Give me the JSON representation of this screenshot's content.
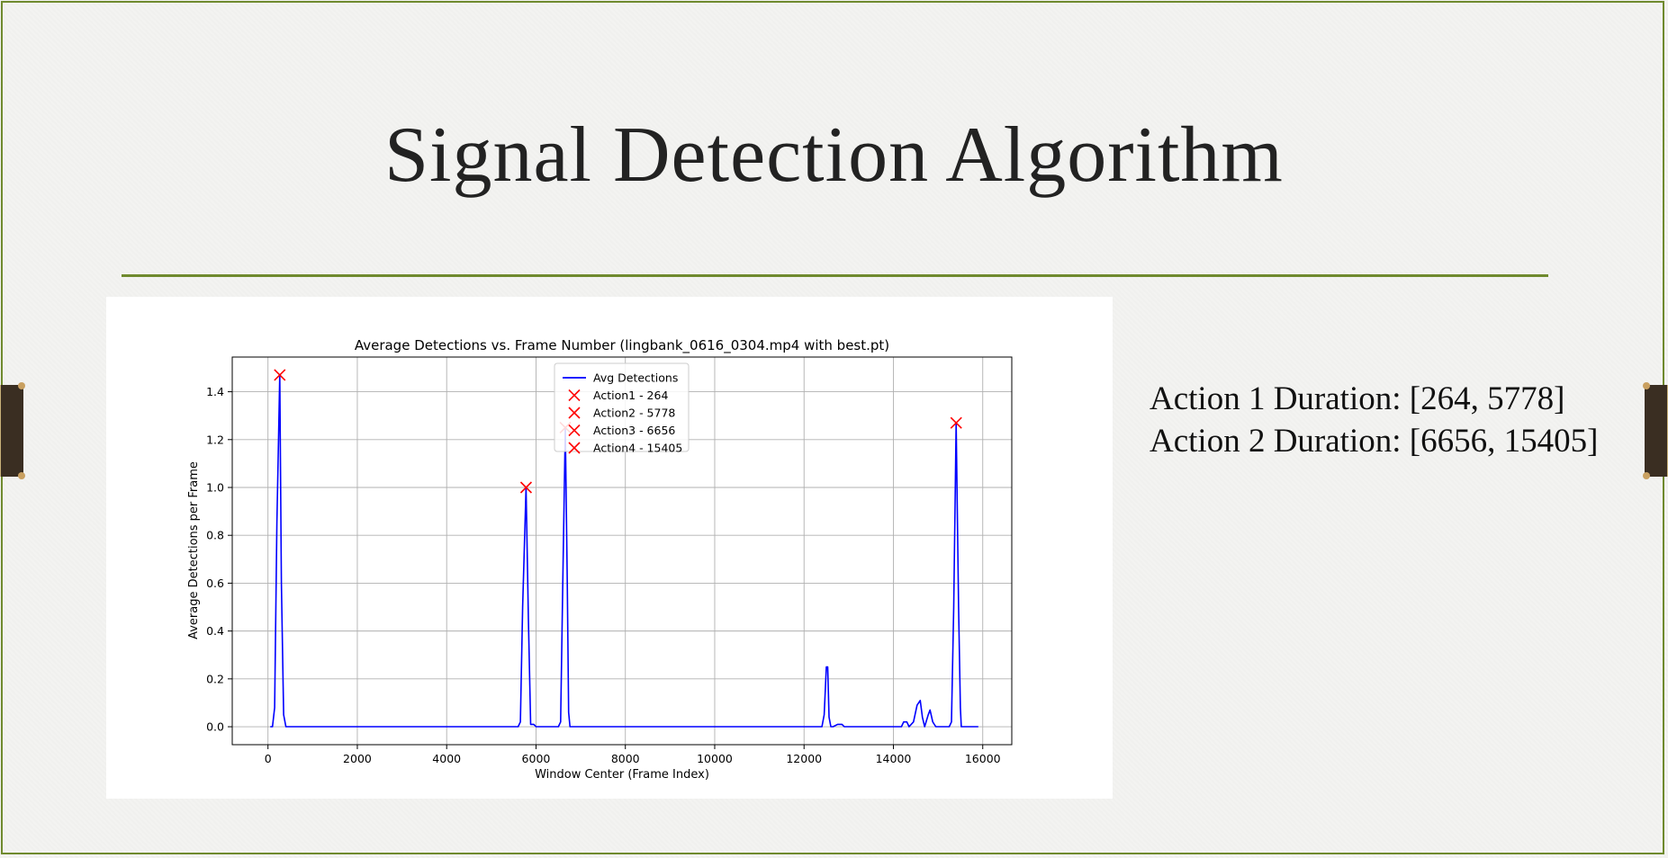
{
  "slide": {
    "title": "Signal Detection Algorithm",
    "durations": [
      "Action 1 Duration: [264, 5778]",
      "Action 2 Duration: [6656, 15405]"
    ],
    "accent_color": "#6f8a2e"
  },
  "chart_data": {
    "type": "line",
    "title": "Average Detections vs. Frame Number (lingbank_0616_0304.mp4 with best.pt)",
    "xlabel": "Window Center (Frame Index)",
    "ylabel": "Average Detections per Frame",
    "xlim": [
      -800,
      16650
    ],
    "ylim": [
      -0.075,
      1.545
    ],
    "xticks": [
      0,
      2000,
      4000,
      6000,
      8000,
      10000,
      12000,
      14000,
      16000
    ],
    "yticks": [
      0.0,
      0.2,
      0.4,
      0.6,
      0.8,
      1.0,
      1.2,
      1.4
    ],
    "grid": true,
    "legend_placement": "top-center",
    "series": [
      {
        "name": "Avg Detections",
        "color": "#0000ff",
        "x": [
          50,
          100,
          150,
          200,
          264,
          300,
          350,
          400,
          5600,
          5650,
          5700,
          5778,
          5830,
          5880,
          5950,
          6000,
          6500,
          6550,
          6600,
          6656,
          6700,
          6730,
          6760,
          6800,
          12400,
          12450,
          12500,
          12530,
          12560,
          12600,
          12650,
          12750,
          12850,
          12900,
          14180,
          14230,
          14300,
          14350,
          14450,
          14530,
          14600,
          14650,
          14700,
          14780,
          14820,
          14880,
          14950,
          15000,
          15250,
          15300,
          15350,
          15405,
          15460,
          15500,
          15520,
          15550,
          15900
        ],
        "y": [
          0.0,
          0.0,
          0.08,
          0.85,
          1.47,
          0.6,
          0.05,
          0.0,
          0.0,
          0.02,
          0.5,
          1.0,
          0.45,
          0.01,
          0.01,
          0.0,
          0.0,
          0.02,
          0.6,
          1.25,
          0.6,
          0.06,
          0.0,
          0.0,
          0.0,
          0.05,
          0.25,
          0.25,
          0.04,
          0.0,
          0.0,
          0.01,
          0.01,
          0.0,
          0.0,
          0.02,
          0.02,
          0.0,
          0.02,
          0.09,
          0.11,
          0.04,
          0.0,
          0.05,
          0.07,
          0.02,
          0.0,
          0.0,
          0.0,
          0.02,
          0.5,
          1.27,
          0.5,
          0.08,
          0.0,
          0.0,
          0.0
        ]
      }
    ],
    "markers": [
      {
        "label": "Action1 - 264",
        "x": 264,
        "y": 1.47,
        "color": "#ff0000"
      },
      {
        "label": "Action2 - 5778",
        "x": 5778,
        "y": 1.0,
        "color": "#ff0000"
      },
      {
        "label": "Action3 - 6656",
        "x": 6656,
        "y": 1.25,
        "color": "#ff0000"
      },
      {
        "label": "Action4 - 15405",
        "x": 15405,
        "y": 1.27,
        "color": "#ff0000"
      }
    ]
  }
}
